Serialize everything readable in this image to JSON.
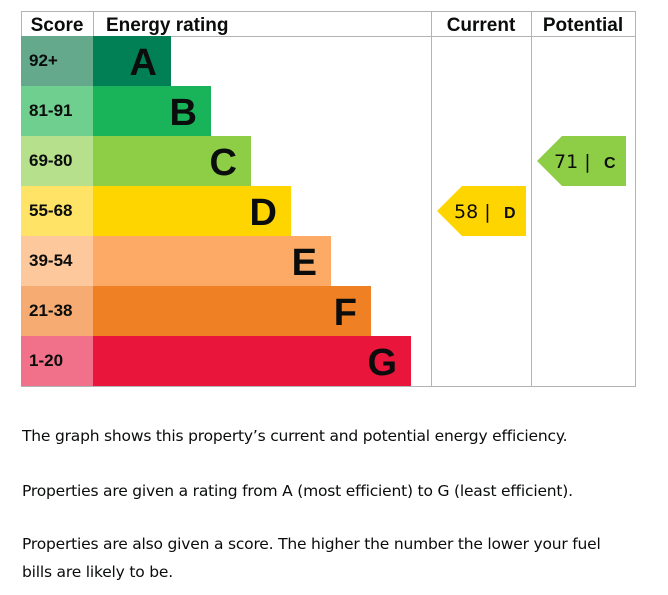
{
  "chart_data": {
    "type": "bar",
    "headers": {
      "score": "Score",
      "rating": "Energy rating",
      "current": "Current",
      "potential": "Potential"
    },
    "bands": [
      {
        "letter": "A",
        "range": "92+",
        "bar_color": "#008054",
        "score_color": "#64a98b"
      },
      {
        "letter": "B",
        "range": "81-91",
        "bar_color": "#19b459",
        "score_color": "#6fcf8f"
      },
      {
        "letter": "C",
        "range": "69-80",
        "bar_color": "#8dce46",
        "score_color": "#b6e08c"
      },
      {
        "letter": "D",
        "range": "55-68",
        "bar_color": "#ffd500",
        "score_color": "#ffe366"
      },
      {
        "letter": "E",
        "range": "39-54",
        "bar_color": "#fcaa65",
        "score_color": "#fdc89b"
      },
      {
        "letter": "F",
        "range": "21-38",
        "bar_color": "#ef8023",
        "score_color": "#f5ab72"
      },
      {
        "letter": "G",
        "range": "1-20",
        "bar_color": "#e9153b",
        "score_color": "#f2718a"
      }
    ],
    "current": {
      "score": 58,
      "band": "D",
      "label": "58 |",
      "band_label": "D",
      "color": "#ffd500"
    },
    "potential": {
      "score": 71,
      "band": "C",
      "label": "71 |",
      "band_label": "C",
      "color": "#8dce46"
    }
  },
  "description": {
    "p1": "The graph shows this property’s current and potential energy efficiency.",
    "p2": "Properties are given a rating from A (most efficient) to G (least efficient).",
    "p3a": "Properties are also given a score. The higher the number the lower your fuel",
    "p3b": "bills are likely to be."
  }
}
